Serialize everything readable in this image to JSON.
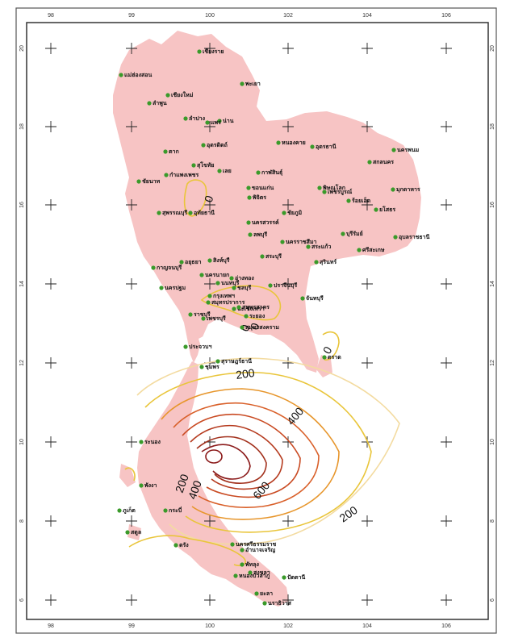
{
  "map": {
    "x_ticks": [
      "98",
      "99",
      "100",
      "102",
      "104",
      "106"
    ],
    "y_ticks": [
      "20",
      "18",
      "16",
      "14",
      "12",
      "10",
      "8",
      "6"
    ],
    "land_color": "#f7c4c4",
    "city_marker_color": "#3a9a2a",
    "contour_colors": [
      "#8b1a1a",
      "#b53a1e",
      "#d9602a",
      "#e7962c",
      "#e9c53a",
      "#f3dba0"
    ],
    "contour_levels_labeled": [
      {
        "text": "0"
      },
      {
        "text": "200"
      },
      {
        "text": "400"
      },
      {
        "text": "600"
      },
      {
        "text": "200"
      },
      {
        "text": "0"
      },
      {
        "text": "0"
      },
      {
        "text": "200"
      },
      {
        "text": "400"
      },
      {
        "text": "0"
      }
    ],
    "cities": [
      {
        "name": "เชียงราย"
      },
      {
        "name": "แม่ฮ่องสอน"
      },
      {
        "name": "เชียงใหม่"
      },
      {
        "name": "ลำพูน"
      },
      {
        "name": "พะเยา"
      },
      {
        "name": "น่าน"
      },
      {
        "name": "ลำปาง"
      },
      {
        "name": "แพร่"
      },
      {
        "name": "อุตรดิตถ์"
      },
      {
        "name": "ตาก"
      },
      {
        "name": "สุโขทัย"
      },
      {
        "name": "เลย"
      },
      {
        "name": "หนองคาย"
      },
      {
        "name": "อุดรธานี"
      },
      {
        "name": "นครพนม"
      },
      {
        "name": "สกลนคร"
      },
      {
        "name": "กาฬสินธุ์"
      },
      {
        "name": "มุกดาหาร"
      },
      {
        "name": "ขอนแก่น"
      },
      {
        "name": "พิษณุโลก"
      },
      {
        "name": "เพชรบูรณ์"
      },
      {
        "name": "ชัยภูมิ"
      },
      {
        "name": "ร้อยเอ็ด"
      },
      {
        "name": "ยโสธร"
      },
      {
        "name": "อุบลราชธานี"
      },
      {
        "name": "นครสวรรค์"
      },
      {
        "name": "อุทัยธานี"
      },
      {
        "name": "ลพบุรี"
      },
      {
        "name": "สุพรรณบุรี"
      },
      {
        "name": "นครราชสีมา"
      },
      {
        "name": "บุรีรัมย์"
      },
      {
        "name": "สุรินทร์"
      },
      {
        "name": "ศรีสะเกษ"
      },
      {
        "name": "กาญจนบุรี"
      },
      {
        "name": "สระบุรี"
      },
      {
        "name": "นครปฐม"
      },
      {
        "name": "กรุงเทพฯ"
      },
      {
        "name": "ฉะเชิงเทรา"
      },
      {
        "name": "ปราจีนบุรี"
      },
      {
        "name": "ราชบุรี"
      },
      {
        "name": "ชลบุรี"
      },
      {
        "name": "ระยอง"
      },
      {
        "name": "จันทบุรี"
      },
      {
        "name": "ตราด"
      },
      {
        "name": "เพชรบุรี"
      },
      {
        "name": "ประจวบฯ"
      },
      {
        "name": "ชุมพร"
      },
      {
        "name": "ระนอง"
      },
      {
        "name": "สุราษฎร์ธานี"
      },
      {
        "name": "พังงา"
      },
      {
        "name": "กระบี่"
      },
      {
        "name": "ภูเก็ต"
      },
      {
        "name": "นครศรีธรรมราช"
      },
      {
        "name": "ตรัง"
      },
      {
        "name": "พัทลุง"
      },
      {
        "name": "สงขลา"
      },
      {
        "name": "สตูล"
      },
      {
        "name": "ปัตตานี"
      },
      {
        "name": "ยะลา"
      },
      {
        "name": "นราธิวาส"
      },
      {
        "name": "กำแพงเพชร"
      },
      {
        "name": "พิจิตร"
      },
      {
        "name": "ชัยนาท"
      },
      {
        "name": "สิงห์บุรี"
      },
      {
        "name": "อ่างทอง"
      },
      {
        "name": "อยุธยา"
      },
      {
        "name": "นนทบุรี"
      },
      {
        "name": "สมุทรปราการ"
      },
      {
        "name": "สมุทรสาคร"
      },
      {
        "name": "สมุทรสงคราม"
      },
      {
        "name": "นครนายก"
      },
      {
        "name": "สระแก้ว"
      },
      {
        "name": "อำนาจเจริญ"
      },
      {
        "name": "หนองบัวลำภู"
      }
    ]
  }
}
